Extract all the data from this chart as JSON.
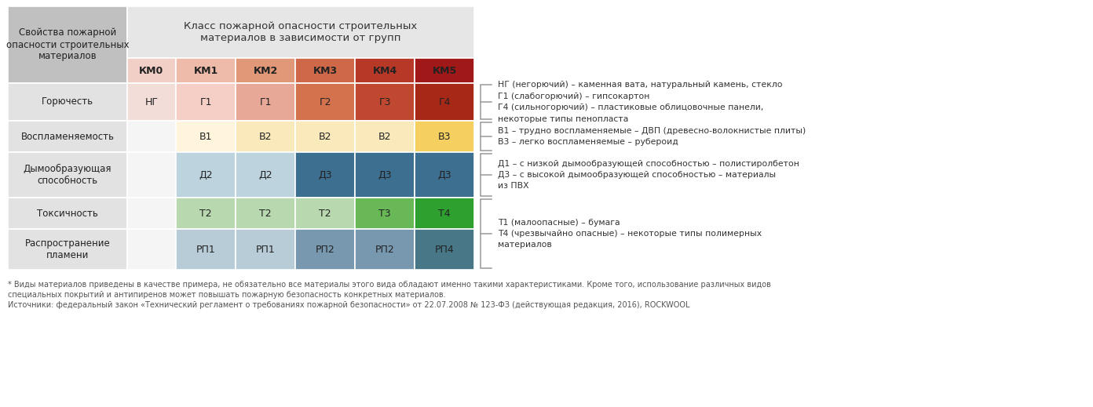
{
  "bg_color": "#ffffff",
  "col_labels": [
    "КМ0",
    "КМ1",
    "КМ2",
    "КМ3",
    "КМ4",
    "КМ5"
  ],
  "row_labels": [
    "Горючесть",
    "Воспламеняемость",
    "Дымообразующая\nспособность",
    "Токсичность",
    "Распространение\nпламени"
  ],
  "header_title": "Класс пожарной опасности строительных\nматериалов в зависимости от групп",
  "left_header": "Свойства пожарной\nопасности строительных\nматериалов",
  "cells": [
    [
      "НГ",
      "Г1",
      "Г1",
      "Г2",
      "Г3",
      "Г4"
    ],
    [
      "",
      "В1",
      "В2",
      "В2",
      "В2",
      "В3"
    ],
    [
      "",
      "Д2",
      "Д2",
      "Д3",
      "Д3",
      "Д3"
    ],
    [
      "",
      "Т2",
      "Т2",
      "Т2",
      "Т3",
      "Т4"
    ],
    [
      "",
      "РП1",
      "РП1",
      "РП2",
      "РП2",
      "РП4"
    ]
  ],
  "cell_colors": [
    [
      "#f2ddd8",
      "#f5cec6",
      "#e8a898",
      "#d4724e",
      "#c04830",
      "#a82818"
    ],
    [
      "#ffffff",
      "#fef5dc",
      "#faeabb",
      "#faeabb",
      "#faeabb",
      "#f5d060"
    ],
    [
      "#ffffff",
      "#bdd4de",
      "#bdd4de",
      "#3d7090",
      "#3d7090",
      "#3d7090"
    ],
    [
      "#ffffff",
      "#b8d8b0",
      "#b8d8b0",
      "#b8d8b0",
      "#68b858",
      "#2ea030"
    ],
    [
      "#ffffff",
      "#b8ccd8",
      "#b8ccd8",
      "#7898b0",
      "#7898b0",
      "#487888"
    ]
  ],
  "km_colors": [
    "#f2cfc6",
    "#eebaaa",
    "#e09878",
    "#ce6848",
    "#b83828",
    "#a01818"
  ],
  "annotations": [
    {
      "text": "НГ (негорючий) – каменная вата, натуральный камень, стекло\nГ1 (слабогорючий) – гипсокартон\nГ4 (сильногорючий) – пластиковые облицовочные панели,\nнекоторые типы пенопласта",
      "rows": [
        0,
        0
      ]
    },
    {
      "text": "В1 – трудно воспламеняемые – ДВП (древесно-волокнистые плиты)\nВ3 – легко воспламеняемые – рубероид",
      "rows": [
        1,
        1
      ]
    },
    {
      "text": "Д1 – с низкой дымообразующей способностью – полистиролбетон\nД3 – с высокой дымообразующей способностью – материалы\nиз ПВХ",
      "rows": [
        2,
        2
      ]
    },
    {
      "text": "Т1 (малоопасные) – бумага\nТ4 (чрезвычайно опасные) – некоторые типы полимерных\nматериалов",
      "rows": [
        3,
        4
      ]
    }
  ],
  "footnote1": "* Виды материалов приведены в качестве примера, не обязательно все материалы этого вида обладают именно такими характеристиками. Кроме того, использование различных видов",
  "footnote2": "специальных покрытий и антипиренов может повышать пожарную безопасность конкретных материалов.",
  "footnote3": "Источники: федеральный закон «Технический регламент о требованиях пожарной безопасности» от 22.07.2008 № 123-ФЗ (действующая редакция, 2016), ROCKWOOL"
}
